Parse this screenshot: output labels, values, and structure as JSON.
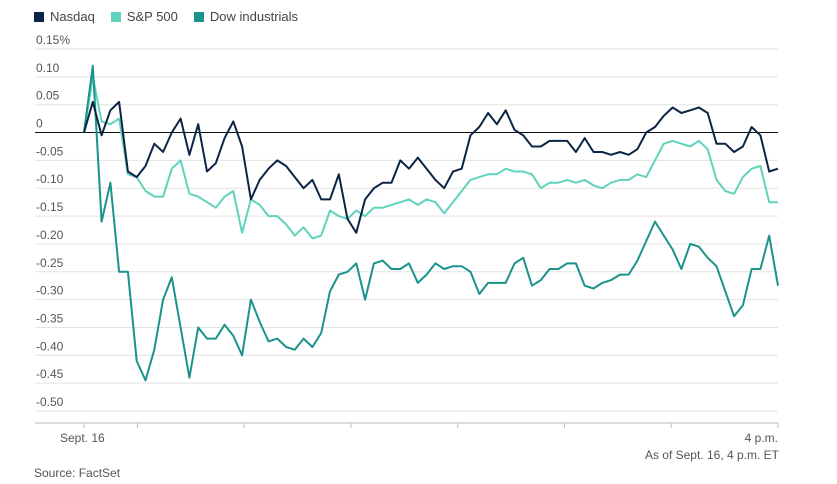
{
  "chart_data": {
    "type": "line",
    "title": "",
    "xlabel": "",
    "ylabel": "",
    "x_tick_labels": [
      "Sept. 16",
      "4 p.m."
    ],
    "y_ticks": [
      0.15,
      0.1,
      0.05,
      0,
      -0.05,
      -0.1,
      -0.15,
      -0.2,
      -0.25,
      -0.3,
      -0.35,
      -0.4,
      -0.45,
      -0.5
    ],
    "y_tick_labels": [
      "0.15%",
      "0.10",
      "0.05",
      "0",
      "-0.05",
      "-0.10",
      "-0.15",
      "-0.20",
      "-0.25",
      "-0.30",
      "-0.35",
      "-0.40",
      "-0.45",
      "-0.50"
    ],
    "ylim": [
      -0.5,
      0.15
    ],
    "grid": true,
    "legend": "top-left",
    "series": [
      {
        "name": "Nasdaq",
        "color": "#0b2545",
        "values": [
          0,
          0.055,
          -0.005,
          0.04,
          0.055,
          -0.07,
          -0.08,
          -0.06,
          -0.02,
          -0.035,
          0,
          0.025,
          -0.04,
          0.015,
          -0.07,
          -0.055,
          -0.01,
          0.02,
          -0.025,
          -0.12,
          -0.085,
          -0.065,
          -0.05,
          -0.06,
          -0.08,
          -0.1,
          -0.085,
          -0.12,
          -0.12,
          -0.075,
          -0.155,
          -0.18,
          -0.12,
          -0.1,
          -0.09,
          -0.09,
          -0.05,
          -0.065,
          -0.045,
          -0.065,
          -0.085,
          -0.1,
          -0.07,
          -0.065,
          -0.005,
          0.01,
          0.035,
          0.015,
          0.04,
          0.005,
          -0.005,
          -0.025,
          -0.025,
          -0.015,
          -0.015,
          -0.015,
          -0.035,
          -0.01,
          -0.035,
          -0.035,
          -0.04,
          -0.035,
          -0.04,
          -0.03,
          0,
          0.01,
          0.03,
          0.045,
          0.035,
          0.04,
          0.045,
          0.035,
          -0.02,
          -0.02,
          -0.035,
          -0.025,
          0.01,
          -0.005,
          -0.07,
          -0.065
        ]
      },
      {
        "name": "S&P 500",
        "color": "#5fd3bc",
        "values": [
          0,
          0.1,
          0.02,
          0.015,
          0.025,
          -0.075,
          -0.08,
          -0.105,
          -0.115,
          -0.115,
          -0.065,
          -0.05,
          -0.11,
          -0.115,
          -0.125,
          -0.135,
          -0.115,
          -0.105,
          -0.18,
          -0.12,
          -0.13,
          -0.15,
          -0.15,
          -0.165,
          -0.185,
          -0.17,
          -0.19,
          -0.185,
          -0.14,
          -0.15,
          -0.155,
          -0.14,
          -0.15,
          -0.135,
          -0.135,
          -0.13,
          -0.125,
          -0.12,
          -0.13,
          -0.12,
          -0.125,
          -0.145,
          -0.125,
          -0.105,
          -0.085,
          -0.08,
          -0.075,
          -0.075,
          -0.065,
          -0.07,
          -0.07,
          -0.075,
          -0.1,
          -0.09,
          -0.09,
          -0.085,
          -0.09,
          -0.085,
          -0.095,
          -0.1,
          -0.09,
          -0.085,
          -0.085,
          -0.075,
          -0.08,
          -0.05,
          -0.02,
          -0.015,
          -0.02,
          -0.025,
          -0.015,
          -0.03,
          -0.085,
          -0.105,
          -0.11,
          -0.08,
          -0.065,
          -0.06,
          -0.125,
          -0.125
        ]
      },
      {
        "name": "Dow industrials",
        "color": "#1a938a",
        "values": [
          0,
          0.12,
          -0.16,
          -0.09,
          -0.25,
          -0.25,
          -0.41,
          -0.445,
          -0.39,
          -0.3,
          -0.26,
          -0.35,
          -0.44,
          -0.35,
          -0.37,
          -0.37,
          -0.345,
          -0.365,
          -0.4,
          -0.3,
          -0.34,
          -0.375,
          -0.37,
          -0.385,
          -0.39,
          -0.37,
          -0.385,
          -0.36,
          -0.285,
          -0.255,
          -0.25,
          -0.235,
          -0.3,
          -0.235,
          -0.23,
          -0.245,
          -0.245,
          -0.235,
          -0.27,
          -0.255,
          -0.235,
          -0.245,
          -0.24,
          -0.24,
          -0.25,
          -0.29,
          -0.27,
          -0.27,
          -0.27,
          -0.235,
          -0.225,
          -0.275,
          -0.265,
          -0.245,
          -0.245,
          -0.235,
          -0.235,
          -0.275,
          -0.28,
          -0.27,
          -0.265,
          -0.255,
          -0.255,
          -0.23,
          -0.195,
          -0.16,
          -0.185,
          -0.21,
          -0.245,
          -0.2,
          -0.205,
          -0.225,
          -0.24,
          -0.285,
          -0.33,
          -0.31,
          -0.245,
          -0.245,
          -0.185,
          -0.275
        ]
      }
    ]
  },
  "note": "As of Sept. 16, 4 p.m. ET",
  "source": "Source: FactSet"
}
